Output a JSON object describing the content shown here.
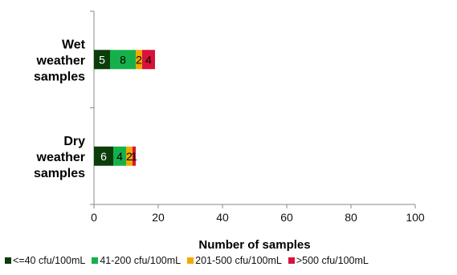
{
  "chart_data": {
    "type": "bar",
    "orientation": "horizontal",
    "stacked": true,
    "categories": [
      "Wet weather samples",
      "Dry weather samples"
    ],
    "category_label_lines": [
      [
        "Wet",
        "weather",
        "samples"
      ],
      [
        "Dry",
        "weather",
        "samples"
      ]
    ],
    "series": [
      {
        "name": "<=40 cfu/100mL",
        "color": "#0b3d0b",
        "values": [
          5,
          6
        ]
      },
      {
        "name": "41-200 cfu/100mL",
        "color": "#16b04a",
        "values": [
          8,
          4
        ]
      },
      {
        "name": "201-500 cfu/100mL",
        "color": "#f2a900",
        "values": [
          2,
          2
        ]
      },
      {
        "name": ">500 cfu/100mL",
        "color": "#d8123a",
        "values": [
          4,
          1
        ]
      }
    ],
    "data_labels": [
      [
        "5",
        "8",
        "2",
        "4"
      ],
      [
        "6",
        "4",
        "2",
        "1"
      ]
    ],
    "label_colors": [
      "#ffffff",
      "#000000",
      "#000000",
      "#000000"
    ],
    "xlabel": "Number of samples",
    "ylabel": "",
    "title": "",
    "xlim": [
      0,
      100
    ],
    "xticks": [
      0,
      20,
      40,
      60,
      80,
      100
    ],
    "grid": false,
    "legend_position": "bottom"
  }
}
